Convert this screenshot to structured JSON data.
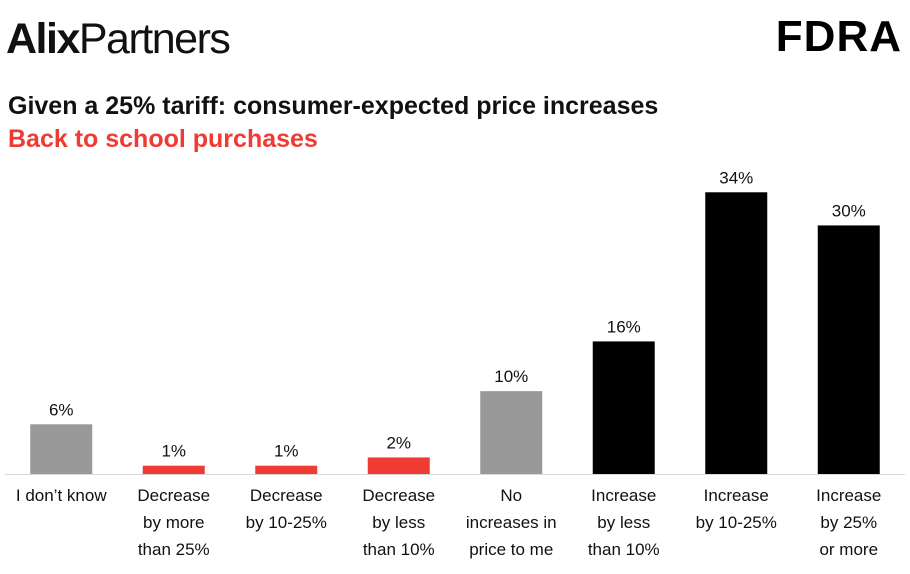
{
  "header": {
    "logo_left_bold": "Alix",
    "logo_left_rest": "Partners",
    "logo_right": "FDRA"
  },
  "chart_data": {
    "type": "bar",
    "title": "Given a 25% tariff: consumer-expected price increases",
    "subtitle": "Back to school purchases",
    "xlabel": "",
    "ylabel": "",
    "ylim": [
      0,
      35
    ],
    "categories": [
      [
        "I don’t know"
      ],
      [
        "Decrease",
        "by more",
        "than 25%"
      ],
      [
        "Decrease",
        "by 10-25%"
      ],
      [
        "Decrease",
        "by less",
        "than 10%"
      ],
      [
        "No",
        "increases in",
        "price to me"
      ],
      [
        "Increase",
        "by less",
        "than 10%"
      ],
      [
        "Increase",
        "by 10-25%"
      ],
      [
        "Increase",
        "by 25%",
        "or more"
      ]
    ],
    "values": [
      6,
      1,
      1,
      2,
      10,
      16,
      34,
      30
    ],
    "value_labels": [
      "6%",
      "1%",
      "1%",
      "2%",
      "10%",
      "16%",
      "34%",
      "30%"
    ],
    "bar_colors": [
      "#999999",
      "#f03a34",
      "#f03a34",
      "#f03a34",
      "#999999",
      "#000000",
      "#000000",
      "#000000"
    ]
  }
}
